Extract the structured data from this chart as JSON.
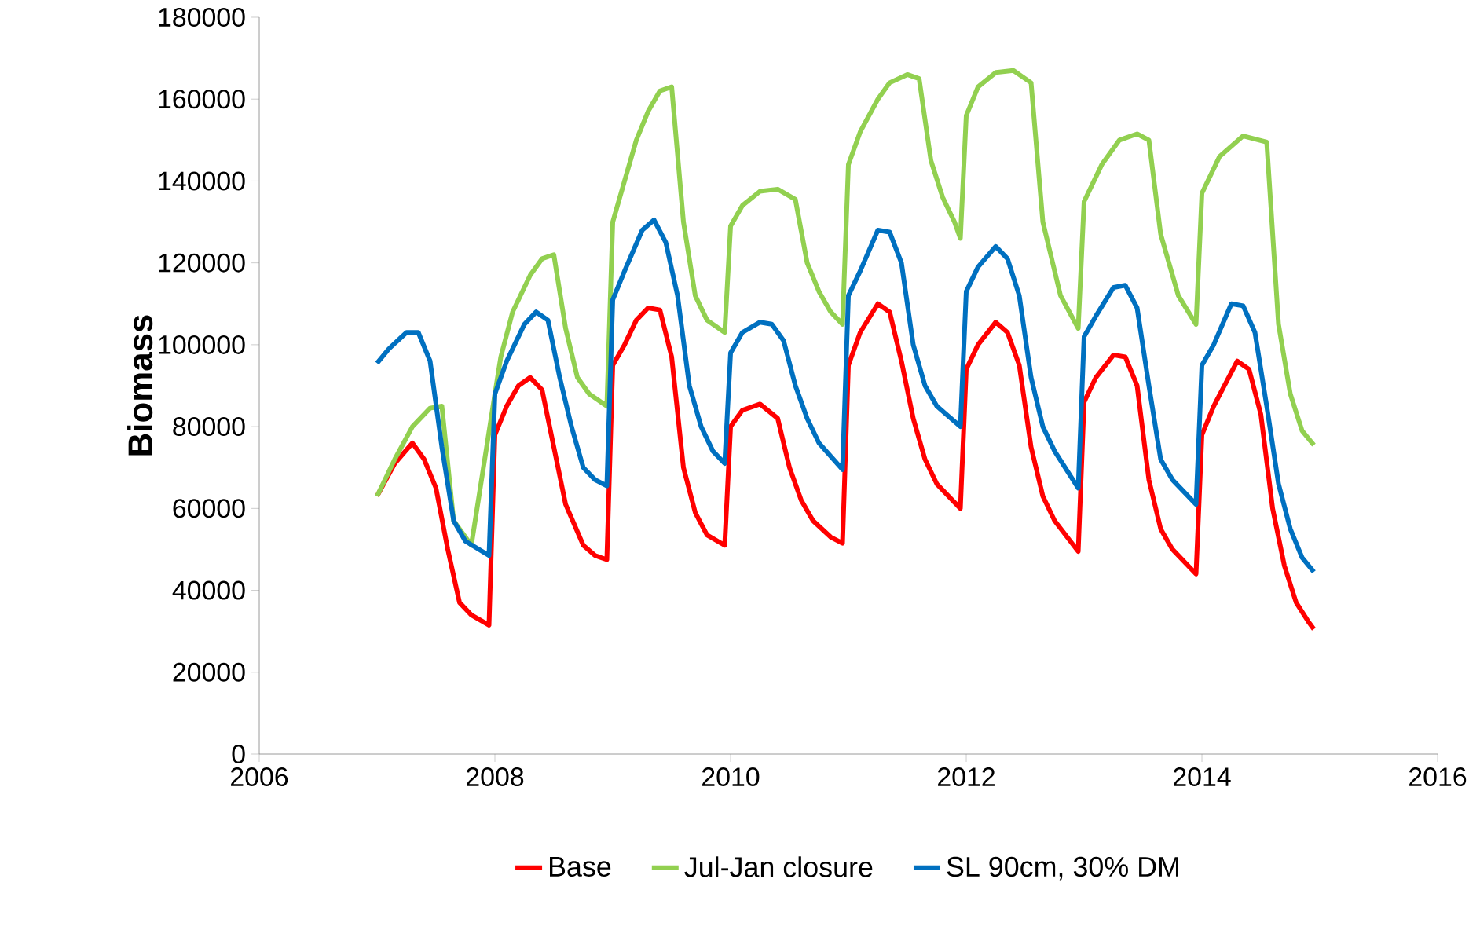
{
  "chart_data": {
    "type": "line",
    "ylabel": "Biomass",
    "xlim": [
      2006,
      2016
    ],
    "xticks": [
      2006,
      2008,
      2010,
      2012,
      2014,
      2016
    ],
    "ylim": [
      0,
      180000
    ],
    "yticks": [
      0,
      20000,
      40000,
      60000,
      80000,
      100000,
      120000,
      140000,
      160000,
      180000
    ],
    "grid": false,
    "legend": "bottom",
    "line_style": "solid",
    "series": [
      {
        "name": "Base",
        "color": "#ff0000",
        "x": [
          2007.0,
          2007.15,
          2007.3,
          2007.4,
          2007.5,
          2007.6,
          2007.7,
          2007.8,
          2007.95,
          2008.0,
          2008.1,
          2008.2,
          2008.3,
          2008.4,
          2008.5,
          2008.6,
          2008.75,
          2008.85,
          2008.95,
          2009.0,
          2009.1,
          2009.2,
          2009.3,
          2009.4,
          2009.5,
          2009.6,
          2009.7,
          2009.8,
          2009.95,
          2010.0,
          2010.1,
          2010.25,
          2010.4,
          2010.5,
          2010.6,
          2010.7,
          2010.85,
          2010.95,
          2011.0,
          2011.1,
          2011.25,
          2011.35,
          2011.45,
          2011.55,
          2011.65,
          2011.75,
          2011.95,
          2012.0,
          2012.1,
          2012.25,
          2012.35,
          2012.45,
          2012.55,
          2012.65,
          2012.75,
          2012.95,
          2013.0,
          2013.1,
          2013.25,
          2013.35,
          2013.45,
          2013.55,
          2013.65,
          2013.75,
          2013.95,
          2014.0,
          2014.1,
          2014.3,
          2014.4,
          2014.5,
          2014.6,
          2014.7,
          2014.8,
          2014.9,
          2014.95
        ],
        "values": [
          63000,
          71000,
          76000,
          72000,
          65000,
          50000,
          37000,
          34000,
          31500,
          78000,
          85000,
          90000,
          92000,
          89000,
          75000,
          61000,
          51000,
          48500,
          47500,
          95000,
          100000,
          106000,
          109000,
          108500,
          97000,
          70000,
          59000,
          53500,
          51000,
          80000,
          84000,
          85500,
          82000,
          70000,
          62000,
          57000,
          53000,
          51500,
          95000,
          103000,
          110000,
          108000,
          96000,
          82000,
          72000,
          66000,
          60000,
          94000,
          100000,
          105500,
          103000,
          95000,
          75000,
          63000,
          57000,
          49500,
          86000,
          92000,
          97500,
          97000,
          90000,
          67000,
          55000,
          50000,
          44000,
          78000,
          85000,
          96000,
          94000,
          83000,
          60000,
          46000,
          37000,
          32500,
          30500
        ]
      },
      {
        "name": "Jul-Jan closure",
        "color": "#92d050",
        "x": [
          2007.0,
          2007.15,
          2007.3,
          2007.45,
          2007.55,
          2007.65,
          2007.7,
          2007.8,
          2007.95,
          2008.0,
          2008.05,
          2008.15,
          2008.3,
          2008.4,
          2008.5,
          2008.6,
          2008.7,
          2008.8,
          2008.95,
          2009.0,
          2009.1,
          2009.2,
          2009.3,
          2009.4,
          2009.5,
          2009.6,
          2009.7,
          2009.8,
          2009.95,
          2010.0,
          2010.1,
          2010.25,
          2010.4,
          2010.55,
          2010.65,
          2010.75,
          2010.85,
          2010.95,
          2011.0,
          2011.1,
          2011.25,
          2011.35,
          2011.5,
          2011.6,
          2011.7,
          2011.8,
          2011.9,
          2011.95,
          2012.0,
          2012.1,
          2012.25,
          2012.4,
          2012.55,
          2012.65,
          2012.8,
          2012.95,
          2013.0,
          2013.15,
          2013.3,
          2013.45,
          2013.55,
          2013.65,
          2013.8,
          2013.95,
          2014.0,
          2014.15,
          2014.35,
          2014.55,
          2014.65,
          2014.75,
          2014.85,
          2014.95
        ],
        "values": [
          63000,
          72000,
          80000,
          84500,
          85000,
          57000,
          55000,
          51000,
          null,
          88000,
          97000,
          108000,
          117000,
          121000,
          122000,
          104000,
          92000,
          88000,
          85000,
          130000,
          140000,
          150000,
          157000,
          162000,
          163000,
          130000,
          112000,
          106000,
          103000,
          129000,
          134000,
          137500,
          138000,
          135500,
          120000,
          113000,
          108000,
          105000,
          144000,
          152000,
          160000,
          164000,
          166000,
          165000,
          145000,
          136000,
          130000,
          126000,
          156000,
          163000,
          166500,
          167000,
          164000,
          130000,
          112000,
          104000,
          135000,
          144000,
          150000,
          151500,
          150000,
          127000,
          112000,
          105000,
          137000,
          146000,
          151000,
          149500,
          105000,
          88000,
          79000,
          75500
        ]
      },
      {
        "name": "SL 90cm, 30% DM",
        "color": "#0070c0",
        "x": [
          2007.0,
          2007.1,
          2007.25,
          2007.35,
          2007.45,
          2007.55,
          2007.65,
          2007.75,
          2007.95,
          2008.0,
          2008.1,
          2008.25,
          2008.35,
          2008.45,
          2008.55,
          2008.65,
          2008.75,
          2008.85,
          2008.95,
          2009.0,
          2009.1,
          2009.25,
          2009.35,
          2009.45,
          2009.55,
          2009.65,
          2009.75,
          2009.85,
          2009.95,
          2010.0,
          2010.1,
          2010.25,
          2010.35,
          2010.45,
          2010.55,
          2010.65,
          2010.75,
          2010.95,
          2011.0,
          2011.1,
          2011.25,
          2011.35,
          2011.45,
          2011.55,
          2011.65,
          2011.75,
          2011.95,
          2012.0,
          2012.1,
          2012.25,
          2012.35,
          2012.45,
          2012.55,
          2012.65,
          2012.75,
          2012.95,
          2013.0,
          2013.1,
          2013.25,
          2013.35,
          2013.45,
          2013.55,
          2013.65,
          2013.75,
          2013.95,
          2014.0,
          2014.1,
          2014.25,
          2014.35,
          2014.45,
          2014.55,
          2014.65,
          2014.75,
          2014.85,
          2014.95
        ],
        "values": [
          95500,
          99000,
          103000,
          103000,
          96000,
          75000,
          57000,
          52000,
          48500,
          88000,
          96000,
          105000,
          108000,
          106000,
          92000,
          80000,
          70000,
          67000,
          65500,
          111000,
          118000,
          128000,
          130500,
          125000,
          112000,
          90000,
          80000,
          74000,
          71000,
          98000,
          103000,
          105500,
          105000,
          101000,
          90000,
          82000,
          76000,
          69500,
          112000,
          118000,
          128000,
          127500,
          120000,
          100000,
          90000,
          85000,
          80000,
          113000,
          119000,
          124000,
          121000,
          112000,
          92000,
          80000,
          74000,
          65000,
          102000,
          107000,
          114000,
          114500,
          109000,
          90000,
          72000,
          67000,
          61000,
          95000,
          100000,
          110000,
          109500,
          103000,
          85000,
          66000,
          55000,
          48000,
          44500
        ]
      }
    ]
  }
}
